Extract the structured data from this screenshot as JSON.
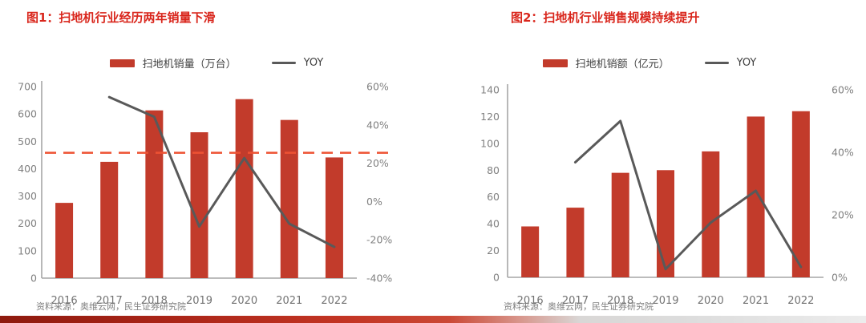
{
  "colors": {
    "bar": "#C23B2B",
    "yoy_line": "#595959",
    "reference_line": "#EE5233",
    "title": "#D9261C",
    "axis_line": "#A6A6A6",
    "tick_text": "#808080",
    "year_text": "#737373",
    "legend_text": "#404040",
    "source_text": "#808080",
    "footer_gradient_start": "#8E1A0E",
    "footer_gradient_end": "#ECECEC"
  },
  "chart_data": [
    {
      "type": "bar",
      "title": "图1：扫地机行业经历两年销量下滑",
      "source": "资料来源：奥维云网，民生证券研究院",
      "categories": [
        "2016",
        "2017",
        "2018",
        "2019",
        "2020",
        "2021",
        "2022"
      ],
      "series": [
        {
          "name": "扫地机销量（万台）",
          "type": "bar",
          "axis": "left",
          "color": "#C23B2B",
          "values": [
            275,
            425,
            613,
            533,
            654,
            578,
            441
          ]
        },
        {
          "name": "YOY",
          "type": "line",
          "axis": "right",
          "color": "#595959",
          "values": [
            null,
            54.5,
            44.2,
            -13.1,
            22.7,
            -11.6,
            -23.7
          ]
        }
      ],
      "left_axis": {
        "min": 0,
        "max": 700,
        "step": 100,
        "ticks": [
          "0",
          "100",
          "200",
          "300",
          "400",
          "500",
          "600",
          "700"
        ]
      },
      "right_axis": {
        "min": -40,
        "max": 60,
        "step": 20,
        "ticks": [
          "-40%",
          "-20%",
          "0%",
          "20%",
          "40%",
          "60%"
        ]
      },
      "reference_line": {
        "axis": "left",
        "value": 458,
        "style": "dashed",
        "color": "#EE5233"
      },
      "grid": false,
      "legend_position": "top"
    },
    {
      "type": "bar",
      "title": "图2：扫地机行业销售规模持续提升",
      "source": "资料来源：奥维云网，民生证券研究院",
      "categories": [
        "2016",
        "2017",
        "2018",
        "2019",
        "2020",
        "2021",
        "2022"
      ],
      "series": [
        {
          "name": "扫地机销额（亿元）",
          "type": "bar",
          "axis": "left",
          "color": "#C23B2B",
          "values": [
            38,
            52,
            78,
            80,
            94,
            120,
            124
          ]
        },
        {
          "name": "YOY",
          "type": "line",
          "axis": "right",
          "color": "#595959",
          "values": [
            null,
            36.8,
            50.0,
            2.6,
            17.5,
            27.7,
            3.3
          ]
        }
      ],
      "left_axis": {
        "min": 0,
        "max": 140,
        "step": 20,
        "ticks": [
          "0",
          "20",
          "40",
          "60",
          "80",
          "100",
          "120",
          "140"
        ]
      },
      "right_axis": {
        "min": 0,
        "max": 60,
        "step": 20,
        "ticks": [
          "0%",
          "20%",
          "40%",
          "60%"
        ]
      },
      "grid": false,
      "legend_position": "top"
    }
  ]
}
